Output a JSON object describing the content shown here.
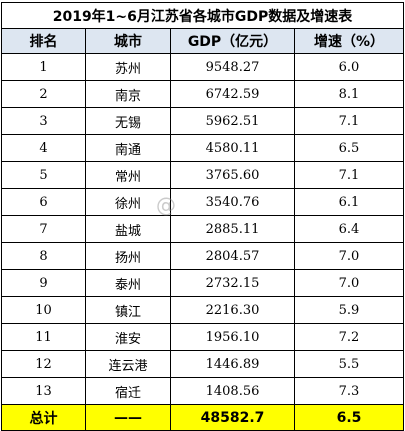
{
  "title": "2019年1~6月江苏省各城市GDP数据及增速表",
  "headers": [
    "排名",
    "城市",
    "GDP（亿元）",
    "增速（%）"
  ],
  "rows": [
    {
      "rank": "1",
      "city": "苏州",
      "gdp": "9548.27",
      "growth": "6.0"
    },
    {
      "rank": "2",
      "city": "南京",
      "gdp": "6742.59",
      "growth": "8.1"
    },
    {
      "rank": "3",
      "city": "无锡",
      "gdp": "5962.51",
      "growth": "7.1"
    },
    {
      "rank": "4",
      "city": "南通",
      "gdp": "4580.11",
      "growth": "6.5"
    },
    {
      "rank": "5",
      "city": "常州",
      "gdp": "3765.60",
      "growth": "7.1"
    },
    {
      "rank": "6",
      "city": "徐州",
      "gdp": "3540.76",
      "growth": "6.1"
    },
    {
      "rank": "7",
      "city": "盐城",
      "gdp": "2885.11",
      "growth": "6.4"
    },
    {
      "rank": "8",
      "city": "扬州",
      "gdp": "2804.57",
      "growth": "7.0"
    },
    {
      "rank": "9",
      "city": "泰州",
      "gdp": "2732.15",
      "growth": "7.0"
    },
    {
      "rank": "10",
      "city": "镇江",
      "gdp": "2216.30",
      "growth": "5.9"
    },
    {
      "rank": "11",
      "city": "淮安",
      "gdp": "1956.10",
      "growth": "7.2"
    },
    {
      "rank": "12",
      "city": "连云港",
      "gdp": "1446.89",
      "growth": "5.5"
    },
    {
      "rank": "13",
      "city": "宿迁",
      "gdp": "1408.56",
      "growth": "7.3"
    }
  ],
  "total": {
    "label": "总计",
    "city": "——",
    "gdp": "48582.7",
    "growth": "6.5"
  },
  "watermark": "@",
  "colors": {
    "header_bg": "#dde6f1",
    "total_bg": "#ffff00",
    "border": "#000000"
  }
}
